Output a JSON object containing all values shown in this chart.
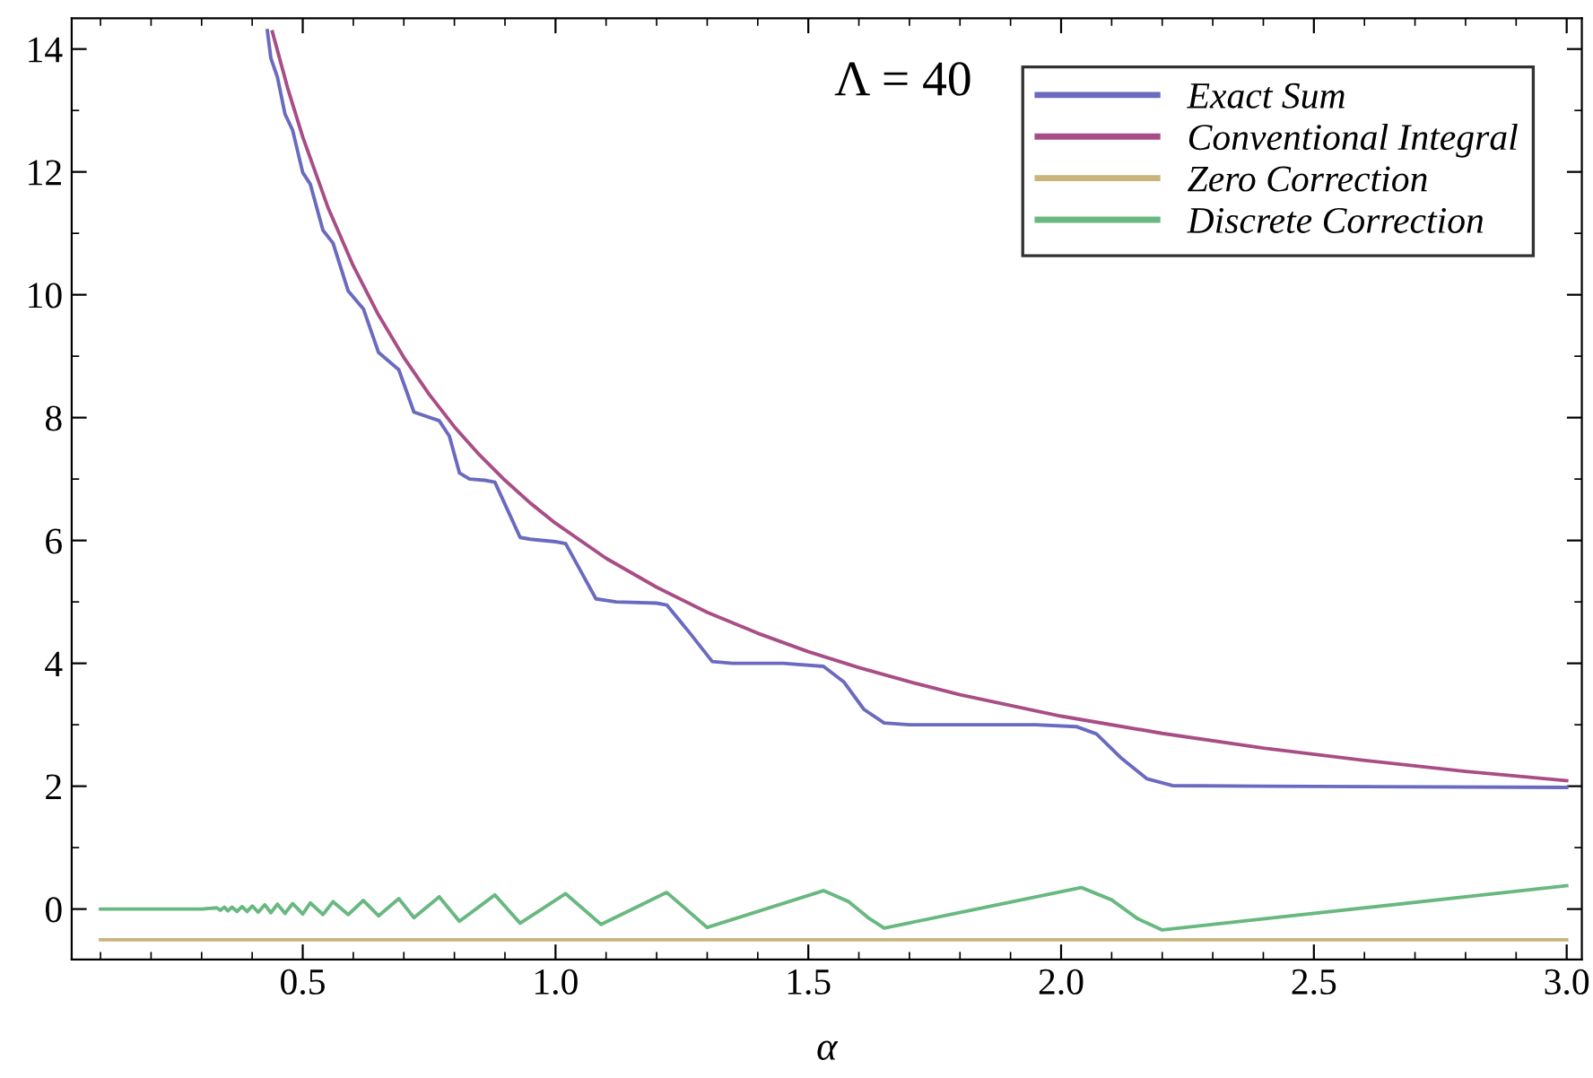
{
  "chart_data": {
    "type": "line",
    "xlabel": "α",
    "annotations": [
      "Λ = 40"
    ],
    "xlim": [
      0.043,
      3.03
    ],
    "ylim": [
      -0.82,
      14.5
    ],
    "xticks": [
      0.5,
      {
        "value": 1,
        "label": "1.0"
      },
      1.5,
      {
        "value": 2,
        "label": "2.0"
      },
      2.5,
      {
        "value": 3,
        "label": "3.0"
      }
    ],
    "yticks": [
      0,
      2,
      4,
      6,
      8,
      10,
      12,
      14
    ],
    "grid": false,
    "legend": "top right",
    "marker": "none",
    "line_style": "solid",
    "series": [
      {
        "name": "Exact Sum",
        "color": "#6a6ac0",
        "x": [
          0.43,
          0.437,
          0.45,
          0.465,
          0.48,
          0.5,
          0.515,
          0.54,
          0.56,
          0.59,
          0.62,
          0.65,
          0.69,
          0.72,
          0.77,
          0.79,
          0.81,
          0.83,
          0.86,
          0.88,
          0.905,
          0.93,
          0.95,
          1.0,
          1.02,
          1.05,
          1.08,
          1.12,
          1.2,
          1.22,
          1.265,
          1.31,
          1.35,
          1.45,
          1.53,
          1.57,
          1.61,
          1.65,
          1.7,
          1.95,
          2.03,
          2.07,
          2.12,
          2.17,
          2.22,
          2.4,
          3.0
        ],
        "values": [
          14.3,
          13.85,
          13.54,
          12.94,
          12.68,
          11.99,
          11.8,
          11.05,
          10.84,
          10.06,
          9.77,
          9.06,
          8.78,
          8.09,
          7.95,
          7.7,
          7.1,
          7.0,
          6.98,
          6.95,
          6.5,
          6.05,
          6.02,
          5.98,
          5.95,
          5.5,
          5.05,
          5.0,
          4.98,
          4.95,
          4.5,
          4.03,
          4.0,
          4.0,
          3.95,
          3.7,
          3.25,
          3.03,
          3.0,
          3.0,
          2.97,
          2.85,
          2.45,
          2.12,
          2.01,
          2.0,
          1.98
        ]
      },
      {
        "name": "Conventional Integral",
        "color": "#a84d85",
        "x": [
          0.44,
          0.47,
          0.5,
          0.55,
          0.6,
          0.65,
          0.7,
          0.75,
          0.8,
          0.85,
          0.9,
          0.95,
          1.0,
          1.1,
          1.2,
          1.3,
          1.4,
          1.5,
          1.6,
          1.7,
          1.8,
          2.0,
          2.2,
          2.4,
          2.6,
          2.8,
          3.0
        ],
        "values": [
          14.28,
          13.37,
          12.57,
          11.42,
          10.47,
          9.67,
          8.98,
          8.38,
          7.85,
          7.39,
          6.98,
          6.61,
          6.28,
          5.71,
          5.24,
          4.83,
          4.49,
          4.19,
          3.93,
          3.7,
          3.49,
          3.14,
          2.86,
          2.62,
          2.42,
          2.24,
          2.09
        ]
      },
      {
        "name": "Zero Correction",
        "color": "#c9b47c",
        "x": [
          0.1,
          3.0
        ],
        "values": [
          -0.5,
          -0.5
        ]
      },
      {
        "name": "Discrete Correction",
        "color": "#68b880",
        "x": [
          0.1,
          0.3,
          0.33,
          0.337,
          0.345,
          0.352,
          0.36,
          0.37,
          0.38,
          0.39,
          0.4,
          0.412,
          0.425,
          0.437,
          0.45,
          0.465,
          0.48,
          0.5,
          0.515,
          0.54,
          0.56,
          0.59,
          0.62,
          0.65,
          0.69,
          0.72,
          0.77,
          0.81,
          0.88,
          0.93,
          1.02,
          1.09,
          1.22,
          1.3,
          1.53,
          1.58,
          1.62,
          1.65,
          2.04,
          2.1,
          2.15,
          2.2,
          3.0
        ],
        "values": [
          0,
          0,
          0.02,
          -0.02,
          0.03,
          -0.03,
          0.03,
          -0.04,
          0.04,
          -0.04,
          0.05,
          -0.05,
          0.07,
          -0.06,
          0.08,
          -0.07,
          0.09,
          -0.08,
          0.1,
          -0.09,
          0.12,
          -0.09,
          0.14,
          -0.11,
          0.17,
          -0.14,
          0.2,
          -0.2,
          0.23,
          -0.23,
          0.25,
          -0.25,
          0.27,
          -0.3,
          0.3,
          0.12,
          -0.15,
          -0.31,
          0.35,
          0.15,
          -0.15,
          -0.34,
          0.38
        ]
      }
    ]
  }
}
